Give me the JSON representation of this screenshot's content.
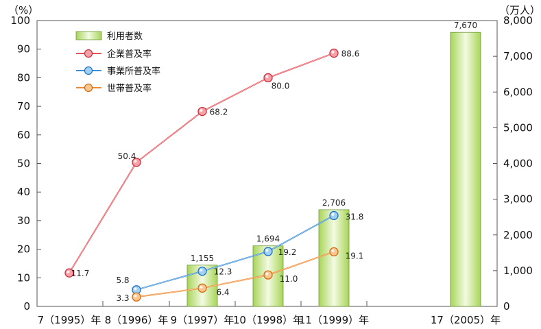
{
  "chart_data": {
    "type": "bar+line",
    "left_axis_unit": "（%）",
    "right_axis_unit": "（万人）",
    "left_ylim": [
      0,
      100
    ],
    "left_ticks": [
      0,
      10,
      20,
      30,
      40,
      50,
      60,
      70,
      80,
      90,
      100
    ],
    "right_ylim": [
      0,
      8000
    ],
    "right_ticks": [
      "0",
      "1,000",
      "2,000",
      "3,000",
      "4,000",
      "5,000",
      "6,000",
      "7,000",
      "8,000"
    ],
    "categories": [
      "7（1995）年",
      "8（1996）年",
      "9（1997）年",
      "10（1998）年",
      "11（1999）年",
      "17（2005）年"
    ],
    "bars": {
      "name": "利用者数",
      "axis": "right",
      "color": "#9ccc4c",
      "values": [
        null,
        null,
        1155,
        1694,
        2706,
        7670
      ],
      "labels": [
        null,
        null,
        "1,155",
        "1,694",
        "2,706",
        "7,670"
      ]
    },
    "series": [
      {
        "name": "企業普及率",
        "axis": "left",
        "color": "#e8505a",
        "values": [
          11.7,
          50.4,
          68.2,
          80.0,
          88.6,
          null
        ],
        "labels": [
          "11.7",
          "50.4",
          "68.2",
          "80.0",
          "88.6",
          null
        ]
      },
      {
        "name": "事業所普及率",
        "axis": "left",
        "color": "#3a8fd8",
        "values": [
          null,
          5.8,
          12.3,
          19.2,
          31.8,
          null
        ],
        "labels": [
          null,
          "5.8",
          "12.3",
          "19.2",
          "31.8",
          null
        ]
      },
      {
        "name": "世帯普及率",
        "axis": "left",
        "color": "#f08a30",
        "values": [
          null,
          3.3,
          6.4,
          11.0,
          19.1,
          null
        ],
        "labels": [
          null,
          "3.3",
          "6.4",
          "11.0",
          "19.1",
          null
        ]
      }
    ],
    "legend": {
      "position": "top-left",
      "items": [
        "利用者数",
        "企業普及率",
        "事業所普及率",
        "世帯普及率"
      ]
    }
  }
}
